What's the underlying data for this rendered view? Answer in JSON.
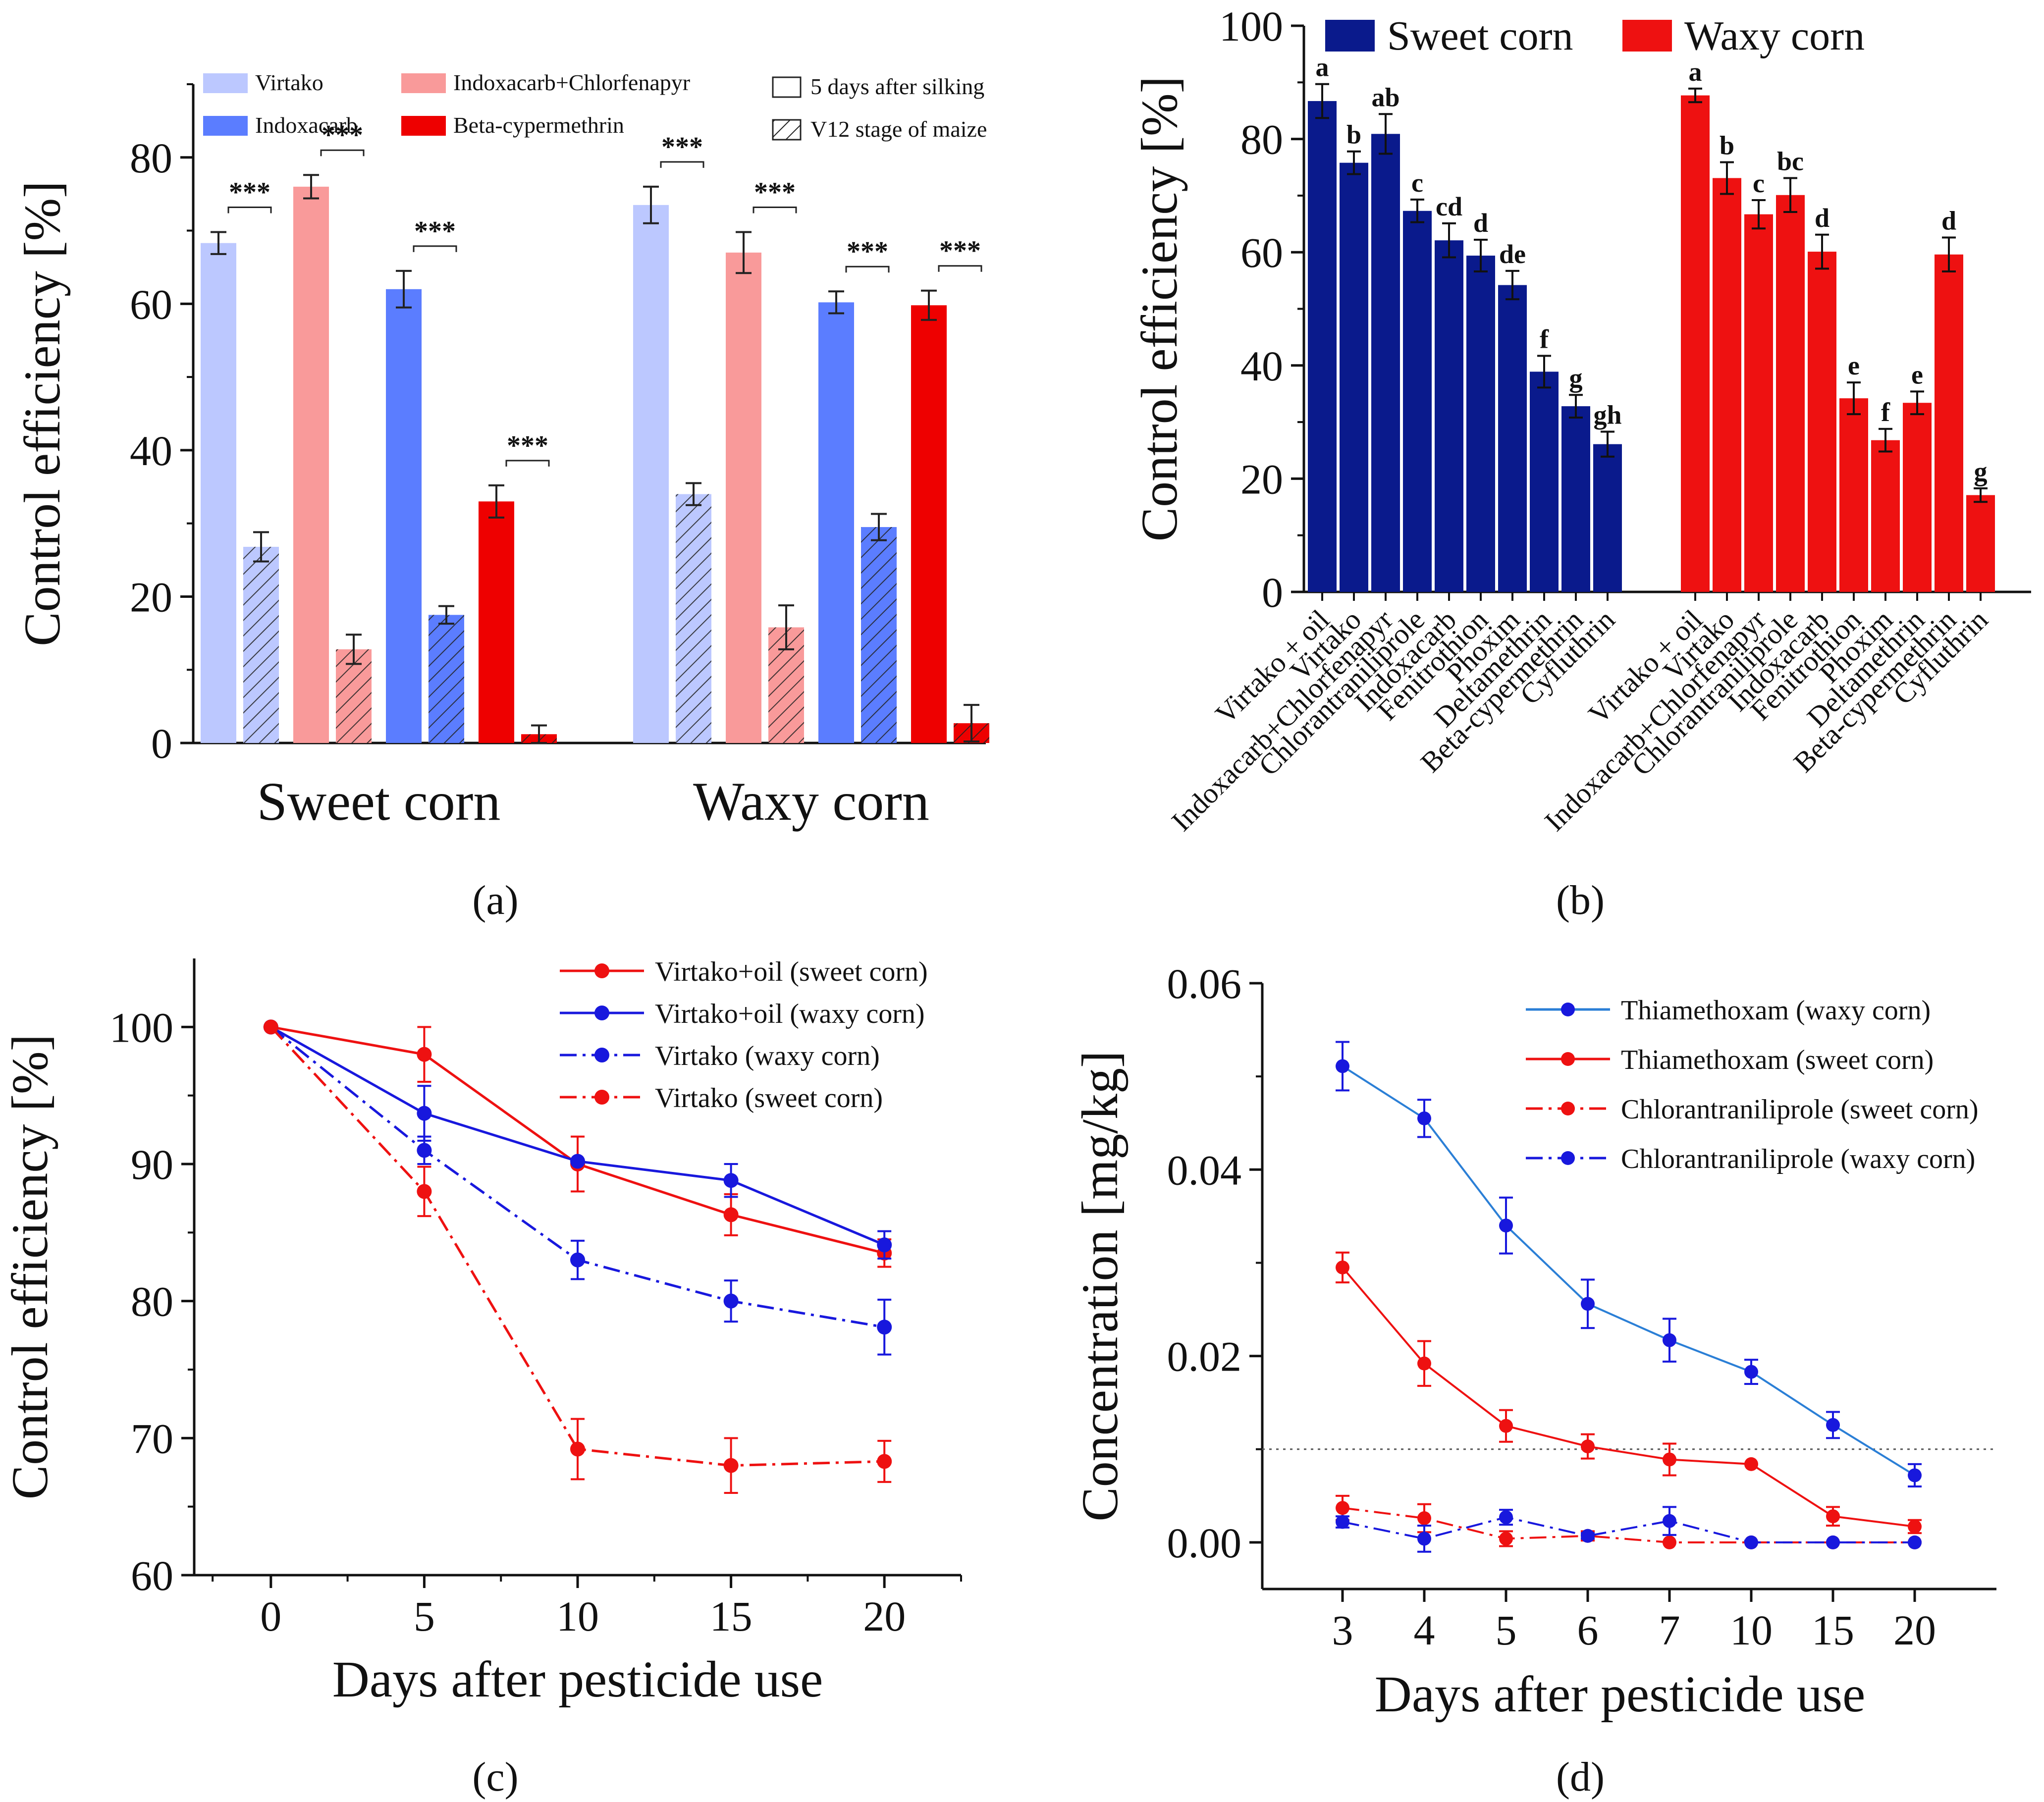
{
  "colors": {
    "virtako": "#bcc8ff",
    "indoxacarb_chlorfenapyr": "#f99a9a",
    "indoxacarb": "#5b7dff",
    "beta_cypermethrin": "#ee0000",
    "sweet_corn_navy": "#0a1a8c",
    "waxy_corn_red": "#ee1111",
    "line_red": "#ee1111",
    "line_blue": "#1818dd",
    "thia_waxy": "#2b7fd6",
    "axis": "#111111"
  },
  "chart_data": [
    {
      "id": "a",
      "type": "bar",
      "panel_label": "(a)",
      "ylabel": "Control efficiency [%]",
      "ylim": [
        0,
        90
      ],
      "yticks": [
        0,
        20,
        40,
        60,
        80
      ],
      "groups": [
        "Sweet corn",
        "Waxy corn"
      ],
      "significance": "***",
      "legend": [
        {
          "label": "Virtako",
          "color_key": "virtako"
        },
        {
          "label": "Indoxacarb",
          "color_key": "indoxacarb"
        },
        {
          "label": "Indoxacarb+Chlorfenapyr",
          "color_key": "indoxacarb_chlorfenapyr"
        },
        {
          "label": "Beta-cypermethrin",
          "color_key": "beta_cypermethrin"
        },
        {
          "label": "5 days after silking",
          "pattern": "open"
        },
        {
          "label": "V12 stage of maize",
          "pattern": "hatched"
        }
      ],
      "series": [
        {
          "name": "Virtako",
          "color_key": "virtako",
          "silking": [
            68.3,
            73.5
          ],
          "silking_err": [
            1.5,
            2.5
          ],
          "v12": [
            26.8,
            34.0
          ],
          "v12_err": [
            2.0,
            1.5
          ]
        },
        {
          "name": "Indoxacarb+Chlorfenapyr",
          "color_key": "indoxacarb_chlorfenapyr",
          "silking": [
            76.0,
            67.0
          ],
          "silking_err": [
            1.6,
            2.8
          ],
          "v12": [
            12.8,
            15.8
          ],
          "v12_err": [
            2.0,
            3.0
          ]
        },
        {
          "name": "Indoxacarb",
          "color_key": "indoxacarb",
          "silking": [
            62.0,
            60.2
          ],
          "silking_err": [
            2.5,
            1.5
          ],
          "v12": [
            17.5,
            29.5
          ],
          "v12_err": [
            1.2,
            1.8
          ]
        },
        {
          "name": "Beta-cypermethrin",
          "color_key": "beta_cypermethrin",
          "silking": [
            33.0,
            59.8
          ],
          "silking_err": [
            2.2,
            2.0
          ],
          "v12": [
            1.2,
            2.7
          ],
          "v12_err": [
            1.2,
            2.5
          ]
        }
      ]
    },
    {
      "id": "b",
      "type": "bar",
      "panel_label": "(b)",
      "ylabel": "Control efficiency [%]",
      "ylim": [
        0,
        100
      ],
      "yticks": [
        0,
        20,
        40,
        60,
        80,
        100
      ],
      "legend": [
        {
          "label": "Sweet corn",
          "color_key": "sweet_corn_navy"
        },
        {
          "label": "Waxy corn",
          "color_key": "waxy_corn_red"
        }
      ],
      "series": [
        {
          "name": "Sweet corn",
          "color_key": "sweet_corn_navy",
          "categories": [
            "Virtako + oil",
            "Virtako",
            "Indoxacarb+Chlorfenapyr",
            "Chlorantraniliprole",
            "Indoxacarb",
            "Fenitrothion",
            "Phoxim",
            "Deltamethrin",
            "Beta-cypermethrin",
            "Cyfluthrin"
          ],
          "values": [
            86.7,
            75.8,
            80.9,
            67.3,
            62.1,
            59.4,
            54.2,
            38.9,
            32.8,
            26.1
          ],
          "errors": [
            3.0,
            2.0,
            3.5,
            2.0,
            3.0,
            2.8,
            2.5,
            2.8,
            2.0,
            2.2
          ],
          "letters": [
            "a",
            "b",
            "ab",
            "c",
            "cd",
            "d",
            "de",
            "f",
            "g",
            "gh"
          ]
        },
        {
          "name": "Waxy corn",
          "color_key": "waxy_corn_red",
          "categories": [
            "Virtako + oil",
            "Virtako",
            "Indoxacarb+Chlorfenapyr",
            "Chlorantraniliprole",
            "Indoxacarb",
            "Fenitrothion",
            "Phoxim",
            "Deltamethrin",
            "Beta-cypermethrin",
            "Cyfluthrin"
          ],
          "values": [
            87.7,
            73.1,
            66.7,
            70.1,
            60.1,
            34.2,
            26.8,
            33.4,
            59.6,
            17.1
          ],
          "errors": [
            1.2,
            2.8,
            2.5,
            3.0,
            3.0,
            2.8,
            2.0,
            2.0,
            3.0,
            1.2
          ],
          "letters": [
            "a",
            "b",
            "c",
            "bc",
            "d",
            "e",
            "f",
            "e",
            "d",
            "g"
          ]
        }
      ]
    },
    {
      "id": "c",
      "type": "line",
      "panel_label": "(c)",
      "xlabel": "Days after pesticide use",
      "ylabel": "Control efficiency [%]",
      "x": [
        0,
        5,
        10,
        15,
        20
      ],
      "xlim": [
        -2.5,
        22.5
      ],
      "ylim": [
        60,
        105
      ],
      "yticks": [
        60,
        70,
        80,
        90,
        100
      ],
      "series": [
        {
          "name": "Virtako+oil (sweet corn)",
          "color_key": "line_red",
          "dash": "solid",
          "values": [
            100,
            98.0,
            90.0,
            86.3,
            83.5
          ],
          "errors": [
            0,
            2.0,
            2.0,
            1.5,
            1.0
          ]
        },
        {
          "name": "Virtako+oil (waxy corn)",
          "color_key": "line_blue",
          "dash": "solid",
          "values": [
            100,
            93.7,
            90.2,
            88.8,
            84.1
          ],
          "errors": [
            0,
            2.0,
            0,
            1.2,
            1.0
          ]
        },
        {
          "name": "Virtako (waxy corn)",
          "color_key": "line_blue",
          "dash": "dashdot",
          "values": [
            100,
            91.0,
            83.0,
            80.0,
            78.1
          ],
          "errors": [
            0,
            1.0,
            1.4,
            1.5,
            2.0
          ]
        },
        {
          "name": "Virtako (sweet corn)",
          "color_key": "line_red",
          "dash": "dashdot",
          "values": [
            100,
            88.0,
            69.2,
            68.0,
            68.3
          ],
          "errors": [
            0,
            1.8,
            2.2,
            2.0,
            1.5
          ]
        }
      ]
    },
    {
      "id": "d",
      "type": "line",
      "panel_label": "(d)",
      "xlabel": "Days after pesticide use",
      "ylabel": "Concentration [mg/kg]",
      "x": [
        "3",
        "4",
        "5",
        "6",
        "7",
        "10",
        "15",
        "20"
      ],
      "ylim": [
        -0.005,
        0.06
      ],
      "yticks": [
        0.0,
        0.02,
        0.04,
        0.06
      ],
      "ytick_labels": [
        "0.00",
        "0.02",
        "0.04",
        "0.06"
      ],
      "reference_line": 0.01,
      "series": [
        {
          "name": "Thiamethoxam (waxy corn)",
          "color_key": "thia_waxy",
          "marker_color_key": "line_blue",
          "dash": "solid",
          "values": [
            0.0511,
            0.0455,
            0.034,
            0.0256,
            0.0217,
            0.0183,
            0.0126,
            0.0072
          ],
          "errors": [
            0.0026,
            0.002,
            0.003,
            0.0026,
            0.0023,
            0.0013,
            0.0014,
            0.0012
          ]
        },
        {
          "name": "Thiamethoxam (sweet corn)",
          "color_key": "line_red",
          "marker_color_key": "line_red",
          "dash": "solid",
          "values": [
            0.0295,
            0.0192,
            0.0125,
            0.0103,
            0.0089,
            0.0084,
            0.0028,
            0.0017
          ],
          "errors": [
            0.0016,
            0.0024,
            0.0017,
            0.0013,
            0.0017,
            0,
            0.001,
            0.0007
          ]
        },
        {
          "name": "Chlorantraniliprole (sweet corn)",
          "color_key": "line_red",
          "marker_color_key": "line_red",
          "dash": "dashdot",
          "values": [
            0.0037,
            0.0026,
            0.0004,
            0.0007,
            0.0,
            0.0,
            0.0,
            0.0
          ],
          "errors": [
            0.0013,
            0.0015,
            0.0008,
            0.0005,
            0,
            0,
            0,
            0
          ]
        },
        {
          "name": "Chlorantraniliprole (waxy corn)",
          "color_key": "line_blue",
          "marker_color_key": "line_blue",
          "dash": "dashdot",
          "values": [
            0.0022,
            0.0004,
            0.0027,
            0.0007,
            0.0023,
            0.0,
            0.0,
            0.0
          ],
          "errors": [
            0.0006,
            0.0014,
            0.0008,
            0.0003,
            0.0015,
            0,
            0,
            0
          ]
        }
      ]
    }
  ]
}
